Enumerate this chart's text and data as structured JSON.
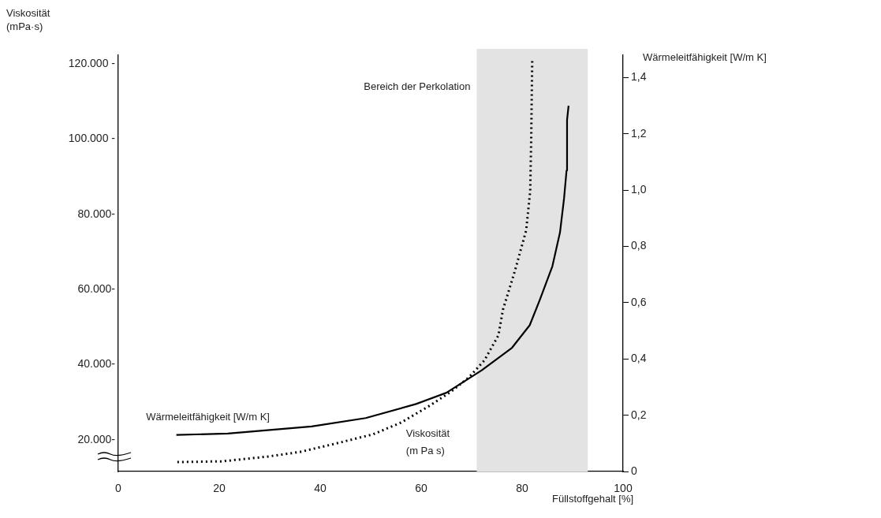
{
  "chart_data": {
    "type": "line",
    "xlabel": "Füllstoffgehalt [%]",
    "ylabel": "Viskosität (mPa·s)",
    "y2label": "Wärmeleitfähigkeit [W/m K]",
    "xlim": [
      0,
      100
    ],
    "xticks": [
      0,
      20,
      40,
      60,
      80,
      100
    ],
    "ylim": [
      11600,
      122300
    ],
    "yticks": [
      {
        "value": 20000,
        "label": "20.000-"
      },
      {
        "value": 40000,
        "label": "40.000-"
      },
      {
        "value": 60000,
        "label": "60.000-"
      },
      {
        "value": 80000,
        "label": "80.000-"
      },
      {
        "value": 100000,
        "label": "100.000 -"
      },
      {
        "value": 120000,
        "label": "120.000 -"
      }
    ],
    "y2lim": [
      0,
      1.48
    ],
    "y2ticks": [
      0,
      {
        "value": 0.2,
        "label": "0,2"
      },
      {
        "value": 0.4,
        "label": "0,4"
      },
      {
        "value": 0.6,
        "label": "0,6"
      },
      {
        "value": 0.8,
        "label": "0,8"
      },
      {
        "value": 1.0,
        "label": "1,0"
      },
      {
        "value": 1.2,
        "label": "1,2"
      },
      {
        "value": 1.4,
        "label": "1,4"
      }
    ],
    "grid": false,
    "legend": false,
    "marker": "none",
    "bands": [
      {
        "axis": "x",
        "from": 71,
        "to": 93,
        "label": "Bereich der Perkolation",
        "color": "#e3e3e3"
      }
    ],
    "series": [
      {
        "name": "Wärmeleitfähigkeit [W/m K]",
        "color": "#000000",
        "axis": "y2",
        "line_style": "solid",
        "x": [
          11.5,
          21.7,
          38.3,
          49,
          59,
          65,
          72,
          78,
          81.5,
          83.5,
          86,
          87.5,
          88.3,
          88.8,
          88.9,
          89.2
        ],
        "values": [
          0.13,
          0.135,
          0.16,
          0.19,
          0.24,
          0.28,
          0.36,
          0.44,
          0.52,
          0.61,
          0.73,
          0.85,
          0.97,
          1.07,
          1.25,
          1.3
        ]
      },
      {
        "name": "Viskosität (m Pa s)",
        "color": "#000000",
        "axis": "y",
        "line_style": "dotted",
        "x": [
          11.7,
          20.6,
          29.8,
          36,
          43,
          50.5,
          56,
          61.7,
          66,
          69.5,
          72.5,
          75.3,
          76.2,
          78.6,
          80.8,
          81.6,
          81.8,
          82
        ],
        "values": [
          14100,
          14300,
          15600,
          16800,
          19000,
          21500,
          24600,
          29100,
          32900,
          36700,
          41100,
          47800,
          54600,
          65100,
          75700,
          86200,
          100200,
          121300
        ]
      }
    ]
  }
}
